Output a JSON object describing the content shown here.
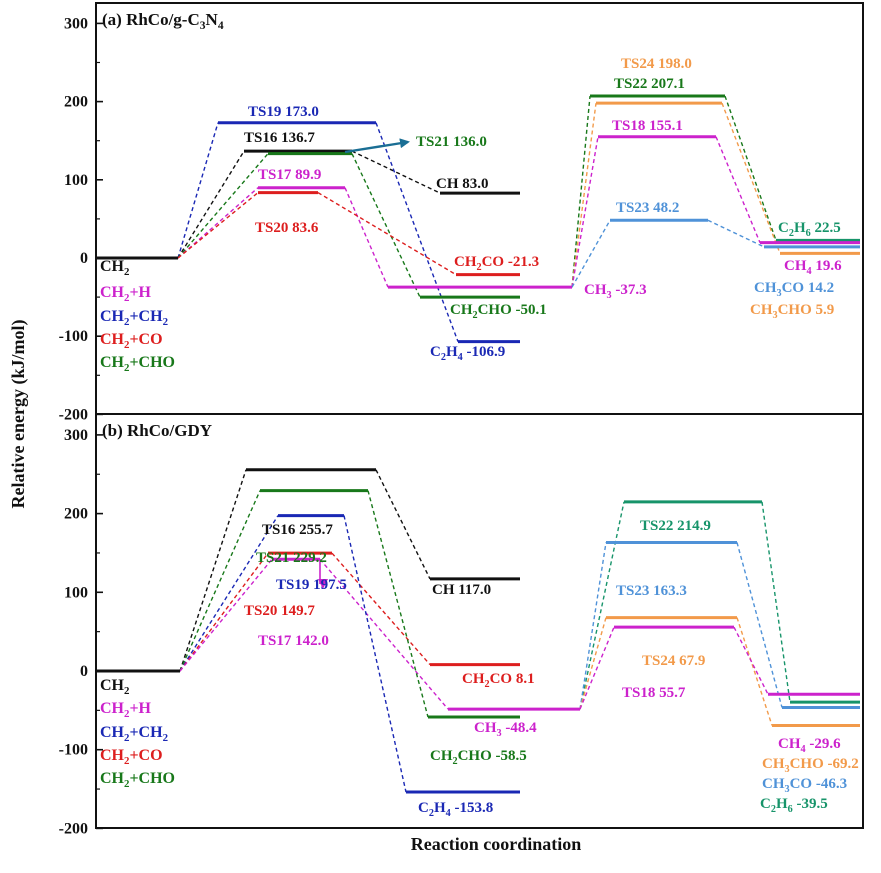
{
  "chart_data": {
    "type": "line",
    "ylabel": "Relative energy (kJ/mol)",
    "xlabel": "Reaction coordination",
    "ylim": [
      -200,
      300
    ],
    "yticks": [
      300,
      200,
      100,
      0,
      -100,
      -200
    ],
    "colors": {
      "black": "#111111",
      "magenta": "#cc22cc",
      "blue": "#1a28b4",
      "red": "#dd1e1e",
      "green": "#18781a",
      "orange": "#f29a4a",
      "lightblue": "#4f92d8",
      "teal": "#17946a",
      "arrow_a": "#1a6e94",
      "arrow_b": "#cc22cc"
    },
    "panels": [
      {
        "title": "(a) RhCo/g-C3N4",
        "legend": [
          {
            "text": "CH2",
            "color": "black"
          },
          {
            "text": "CH2+H",
            "color": "magenta"
          },
          {
            "text": "CH2+CH2",
            "color": "blue"
          },
          {
            "text": "CH2+CO",
            "color": "red"
          },
          {
            "text": "CH2+CHO",
            "color": "green"
          }
        ],
        "levels": [
          {
            "name": "CH2",
            "value": 0,
            "color": "black"
          },
          {
            "name": "TS19",
            "value": 173.0,
            "color": "blue"
          },
          {
            "name": "TS16",
            "value": 136.7,
            "color": "black"
          },
          {
            "name": "TS21",
            "value": 136.0,
            "color": "green"
          },
          {
            "name": "TS17",
            "value": 89.9,
            "color": "magenta"
          },
          {
            "name": "TS20",
            "value": 83.6,
            "color": "red"
          },
          {
            "name": "CH",
            "value": 83.0,
            "color": "black"
          },
          {
            "name": "CH2CO",
            "value": -21.3,
            "color": "red"
          },
          {
            "name": "CH3",
            "value": -37.3,
            "color": "magenta"
          },
          {
            "name": "CH2CHO",
            "value": -50.1,
            "color": "green"
          },
          {
            "name": "C2H4",
            "value": -106.9,
            "color": "blue"
          },
          {
            "name": "TS24",
            "value": 198.0,
            "color": "orange"
          },
          {
            "name": "TS22",
            "value": 207.1,
            "color": "green"
          },
          {
            "name": "TS18",
            "value": 155.1,
            "color": "magenta"
          },
          {
            "name": "TS23",
            "value": 48.2,
            "color": "lightblue"
          },
          {
            "name": "C2H6",
            "value": 22.5,
            "color": "teal"
          },
          {
            "name": "CH4",
            "value": 19.6,
            "color": "magenta"
          },
          {
            "name": "CH3CO",
            "value": 14.2,
            "color": "lightblue"
          },
          {
            "name": "CH3CHO",
            "value": 5.9,
            "color": "orange"
          }
        ],
        "labels": [
          {
            "parts": [
              [
                "TS19  173.0"
              ]
            ],
            "color": "blue"
          },
          {
            "parts": [
              [
                "TS16  136.7"
              ]
            ],
            "color": "black"
          },
          {
            "parts": [
              [
                "TS21  136.0"
              ]
            ],
            "color": "green"
          },
          {
            "parts": [
              [
                "TS17  89.9"
              ]
            ],
            "color": "magenta"
          },
          {
            "parts": [
              [
                "TS20  83.6"
              ]
            ],
            "color": "red"
          },
          {
            "parts": [
              [
                "CH 83.0"
              ]
            ],
            "color": "black"
          },
          {
            "parts": [
              [
                "CH"
              ],
              [
                "2",
                "sub"
              ],
              [
                "CO -21.3"
              ]
            ],
            "color": "red"
          },
          {
            "parts": [
              [
                "CH"
              ],
              [
                "3",
                "sub"
              ],
              [
                " -37.3"
              ]
            ],
            "color": "magenta"
          },
          {
            "parts": [
              [
                "CH"
              ],
              [
                "2",
                "sub"
              ],
              [
                "CHO -50.1"
              ]
            ],
            "color": "green"
          },
          {
            "parts": [
              [
                "C"
              ],
              [
                "2",
                "sub"
              ],
              [
                "H"
              ],
              [
                "4",
                "sub"
              ],
              [
                " -106.9"
              ]
            ],
            "color": "blue"
          },
          {
            "parts": [
              [
                "TS24  198.0"
              ]
            ],
            "color": "orange"
          },
          {
            "parts": [
              [
                "TS22  207.1"
              ]
            ],
            "color": "green"
          },
          {
            "parts": [
              [
                "TS18  155.1"
              ]
            ],
            "color": "magenta"
          },
          {
            "parts": [
              [
                "TS23  48.2"
              ]
            ],
            "color": "lightblue"
          },
          {
            "parts": [
              [
                "C"
              ],
              [
                "2",
                "sub"
              ],
              [
                "H"
              ],
              [
                "6",
                "sub"
              ],
              [
                " 22.5"
              ]
            ],
            "color": "teal"
          },
          {
            "parts": [
              [
                "CH"
              ],
              [
                "4",
                "sub"
              ],
              [
                " 19.6"
              ]
            ],
            "color": "magenta"
          },
          {
            "parts": [
              [
                "CH"
              ],
              [
                "3",
                "sub"
              ],
              [
                "CO 14.2"
              ]
            ],
            "color": "lightblue"
          },
          {
            "parts": [
              [
                "CH"
              ],
              [
                "3",
                "sub"
              ],
              [
                "CHO 5.9"
              ]
            ],
            "color": "orange"
          }
        ]
      },
      {
        "title": "(b) RhCo/GDY",
        "legend": [
          {
            "text": "CH2",
            "color": "black"
          },
          {
            "text": "CH2+H",
            "color": "magenta"
          },
          {
            "text": "CH2+CH2",
            "color": "blue"
          },
          {
            "text": "CH2+CO",
            "color": "red"
          },
          {
            "text": "CH2+CHO",
            "color": "green"
          }
        ],
        "levels": [
          {
            "name": "CH2",
            "value": 0,
            "color": "black"
          },
          {
            "name": "TS16",
            "value": 255.7,
            "color": "black"
          },
          {
            "name": "TS21",
            "value": 229.2,
            "color": "green"
          },
          {
            "name": "TS19",
            "value": 197.5,
            "color": "blue"
          },
          {
            "name": "TS20",
            "value": 149.7,
            "color": "red"
          },
          {
            "name": "TS17",
            "value": 142.0,
            "color": "magenta"
          },
          {
            "name": "CH",
            "value": 117.0,
            "color": "black"
          },
          {
            "name": "CH2CO",
            "value": 8.1,
            "color": "red"
          },
          {
            "name": "CH3",
            "value": -48.4,
            "color": "magenta"
          },
          {
            "name": "CH2CHO",
            "value": -58.5,
            "color": "green"
          },
          {
            "name": "C2H4",
            "value": -153.8,
            "color": "blue"
          },
          {
            "name": "TS22",
            "value": 214.9,
            "color": "teal"
          },
          {
            "name": "TS23",
            "value": 163.3,
            "color": "lightblue"
          },
          {
            "name": "TS24",
            "value": 67.9,
            "color": "orange"
          },
          {
            "name": "TS18",
            "value": 55.7,
            "color": "magenta"
          },
          {
            "name": "CH4",
            "value": -29.6,
            "color": "magenta"
          },
          {
            "name": "CH3CHO",
            "value": -69.2,
            "color": "orange"
          },
          {
            "name": "CH3CO",
            "value": -46.3,
            "color": "lightblue"
          },
          {
            "name": "C2H6",
            "value": -39.5,
            "color": "teal"
          }
        ],
        "labels": [
          {
            "parts": [
              [
                "TS16  255.7"
              ]
            ],
            "color": "black"
          },
          {
            "parts": [
              [
                "TS21  229.2"
              ]
            ],
            "color": "green"
          },
          {
            "parts": [
              [
                "TS19  197.5"
              ]
            ],
            "color": "blue"
          },
          {
            "parts": [
              [
                "TS20  149.7"
              ]
            ],
            "color": "red"
          },
          {
            "parts": [
              [
                "TS17  142.0"
              ]
            ],
            "color": "magenta"
          },
          {
            "parts": [
              [
                "CH 117.0"
              ]
            ],
            "color": "black"
          },
          {
            "parts": [
              [
                "CH"
              ],
              [
                "2",
                "sub"
              ],
              [
                "CO 8.1"
              ]
            ],
            "color": "red"
          },
          {
            "parts": [
              [
                "CH"
              ],
              [
                "3",
                "sub"
              ],
              [
                " -48.4"
              ]
            ],
            "color": "magenta"
          },
          {
            "parts": [
              [
                "CH"
              ],
              [
                "2",
                "sub"
              ],
              [
                "CHO -58.5"
              ]
            ],
            "color": "green"
          },
          {
            "parts": [
              [
                "C"
              ],
              [
                "2",
                "sub"
              ],
              [
                "H"
              ],
              [
                "4",
                "sub"
              ],
              [
                " -153.8"
              ]
            ],
            "color": "blue"
          },
          {
            "parts": [
              [
                "TS22  214.9"
              ]
            ],
            "color": "teal"
          },
          {
            "parts": [
              [
                "TS23  163.3"
              ]
            ],
            "color": "lightblue"
          },
          {
            "parts": [
              [
                "TS24  67.9"
              ]
            ],
            "color": "orange"
          },
          {
            "parts": [
              [
                "TS18  55.7"
              ]
            ],
            "color": "magenta"
          },
          {
            "parts": [
              [
                "CH"
              ],
              [
                "4",
                "sub"
              ],
              [
                " -29.6"
              ]
            ],
            "color": "magenta"
          },
          {
            "parts": [
              [
                "CH"
              ],
              [
                "3",
                "sub"
              ],
              [
                "CHO  -69.2"
              ]
            ],
            "color": "orange"
          },
          {
            "parts": [
              [
                "CH"
              ],
              [
                "3",
                "sub"
              ],
              [
                "CO  -46.3"
              ]
            ],
            "color": "lightblue"
          },
          {
            "parts": [
              [
                "C"
              ],
              [
                "2",
                "sub"
              ],
              [
                "H"
              ],
              [
                "6",
                "sub"
              ],
              [
                " -39.5"
              ]
            ],
            "color": "teal"
          }
        ]
      }
    ]
  }
}
